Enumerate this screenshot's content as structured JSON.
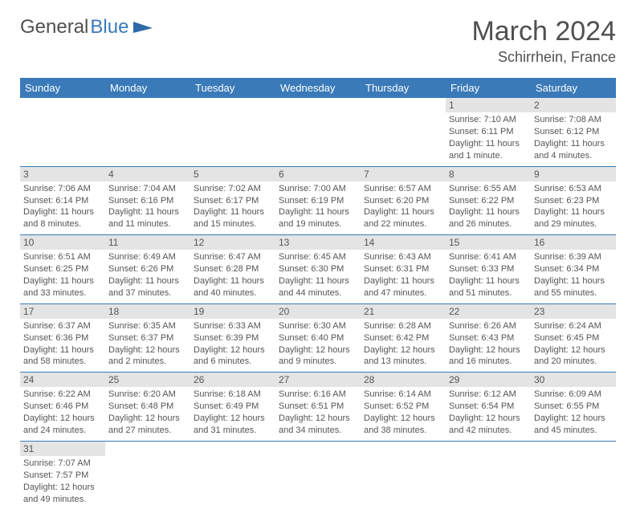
{
  "brand": {
    "part1": "General",
    "part2": "Blue"
  },
  "title": "March 2024",
  "location": "Schirrhein, France",
  "headers": [
    "Sunday",
    "Monday",
    "Tuesday",
    "Wednesday",
    "Thursday",
    "Friday",
    "Saturday"
  ],
  "colors": {
    "accent": "#3a7ab8",
    "dayBg": "#e4e4e4"
  },
  "weeks": [
    [
      null,
      null,
      null,
      null,
      null,
      {
        "n": "1",
        "sr": "Sunrise: 7:10 AM",
        "ss": "Sunset: 6:11 PM",
        "dl": "Daylight: 11 hours and 1 minute."
      },
      {
        "n": "2",
        "sr": "Sunrise: 7:08 AM",
        "ss": "Sunset: 6:12 PM",
        "dl": "Daylight: 11 hours and 4 minutes."
      }
    ],
    [
      {
        "n": "3",
        "sr": "Sunrise: 7:06 AM",
        "ss": "Sunset: 6:14 PM",
        "dl": "Daylight: 11 hours and 8 minutes."
      },
      {
        "n": "4",
        "sr": "Sunrise: 7:04 AM",
        "ss": "Sunset: 6:16 PM",
        "dl": "Daylight: 11 hours and 11 minutes."
      },
      {
        "n": "5",
        "sr": "Sunrise: 7:02 AM",
        "ss": "Sunset: 6:17 PM",
        "dl": "Daylight: 11 hours and 15 minutes."
      },
      {
        "n": "6",
        "sr": "Sunrise: 7:00 AM",
        "ss": "Sunset: 6:19 PM",
        "dl": "Daylight: 11 hours and 19 minutes."
      },
      {
        "n": "7",
        "sr": "Sunrise: 6:57 AM",
        "ss": "Sunset: 6:20 PM",
        "dl": "Daylight: 11 hours and 22 minutes."
      },
      {
        "n": "8",
        "sr": "Sunrise: 6:55 AM",
        "ss": "Sunset: 6:22 PM",
        "dl": "Daylight: 11 hours and 26 minutes."
      },
      {
        "n": "9",
        "sr": "Sunrise: 6:53 AM",
        "ss": "Sunset: 6:23 PM",
        "dl": "Daylight: 11 hours and 29 minutes."
      }
    ],
    [
      {
        "n": "10",
        "sr": "Sunrise: 6:51 AM",
        "ss": "Sunset: 6:25 PM",
        "dl": "Daylight: 11 hours and 33 minutes."
      },
      {
        "n": "11",
        "sr": "Sunrise: 6:49 AM",
        "ss": "Sunset: 6:26 PM",
        "dl": "Daylight: 11 hours and 37 minutes."
      },
      {
        "n": "12",
        "sr": "Sunrise: 6:47 AM",
        "ss": "Sunset: 6:28 PM",
        "dl": "Daylight: 11 hours and 40 minutes."
      },
      {
        "n": "13",
        "sr": "Sunrise: 6:45 AM",
        "ss": "Sunset: 6:30 PM",
        "dl": "Daylight: 11 hours and 44 minutes."
      },
      {
        "n": "14",
        "sr": "Sunrise: 6:43 AM",
        "ss": "Sunset: 6:31 PM",
        "dl": "Daylight: 11 hours and 47 minutes."
      },
      {
        "n": "15",
        "sr": "Sunrise: 6:41 AM",
        "ss": "Sunset: 6:33 PM",
        "dl": "Daylight: 11 hours and 51 minutes."
      },
      {
        "n": "16",
        "sr": "Sunrise: 6:39 AM",
        "ss": "Sunset: 6:34 PM",
        "dl": "Daylight: 11 hours and 55 minutes."
      }
    ],
    [
      {
        "n": "17",
        "sr": "Sunrise: 6:37 AM",
        "ss": "Sunset: 6:36 PM",
        "dl": "Daylight: 11 hours and 58 minutes."
      },
      {
        "n": "18",
        "sr": "Sunrise: 6:35 AM",
        "ss": "Sunset: 6:37 PM",
        "dl": "Daylight: 12 hours and 2 minutes."
      },
      {
        "n": "19",
        "sr": "Sunrise: 6:33 AM",
        "ss": "Sunset: 6:39 PM",
        "dl": "Daylight: 12 hours and 6 minutes."
      },
      {
        "n": "20",
        "sr": "Sunrise: 6:30 AM",
        "ss": "Sunset: 6:40 PM",
        "dl": "Daylight: 12 hours and 9 minutes."
      },
      {
        "n": "21",
        "sr": "Sunrise: 6:28 AM",
        "ss": "Sunset: 6:42 PM",
        "dl": "Daylight: 12 hours and 13 minutes."
      },
      {
        "n": "22",
        "sr": "Sunrise: 6:26 AM",
        "ss": "Sunset: 6:43 PM",
        "dl": "Daylight: 12 hours and 16 minutes."
      },
      {
        "n": "23",
        "sr": "Sunrise: 6:24 AM",
        "ss": "Sunset: 6:45 PM",
        "dl": "Daylight: 12 hours and 20 minutes."
      }
    ],
    [
      {
        "n": "24",
        "sr": "Sunrise: 6:22 AM",
        "ss": "Sunset: 6:46 PM",
        "dl": "Daylight: 12 hours and 24 minutes."
      },
      {
        "n": "25",
        "sr": "Sunrise: 6:20 AM",
        "ss": "Sunset: 6:48 PM",
        "dl": "Daylight: 12 hours and 27 minutes."
      },
      {
        "n": "26",
        "sr": "Sunrise: 6:18 AM",
        "ss": "Sunset: 6:49 PM",
        "dl": "Daylight: 12 hours and 31 minutes."
      },
      {
        "n": "27",
        "sr": "Sunrise: 6:16 AM",
        "ss": "Sunset: 6:51 PM",
        "dl": "Daylight: 12 hours and 34 minutes."
      },
      {
        "n": "28",
        "sr": "Sunrise: 6:14 AM",
        "ss": "Sunset: 6:52 PM",
        "dl": "Daylight: 12 hours and 38 minutes."
      },
      {
        "n": "29",
        "sr": "Sunrise: 6:12 AM",
        "ss": "Sunset: 6:54 PM",
        "dl": "Daylight: 12 hours and 42 minutes."
      },
      {
        "n": "30",
        "sr": "Sunrise: 6:09 AM",
        "ss": "Sunset: 6:55 PM",
        "dl": "Daylight: 12 hours and 45 minutes."
      }
    ],
    [
      {
        "n": "31",
        "sr": "Sunrise: 7:07 AM",
        "ss": "Sunset: 7:57 PM",
        "dl": "Daylight: 12 hours and 49 minutes."
      },
      null,
      null,
      null,
      null,
      null,
      null
    ]
  ]
}
